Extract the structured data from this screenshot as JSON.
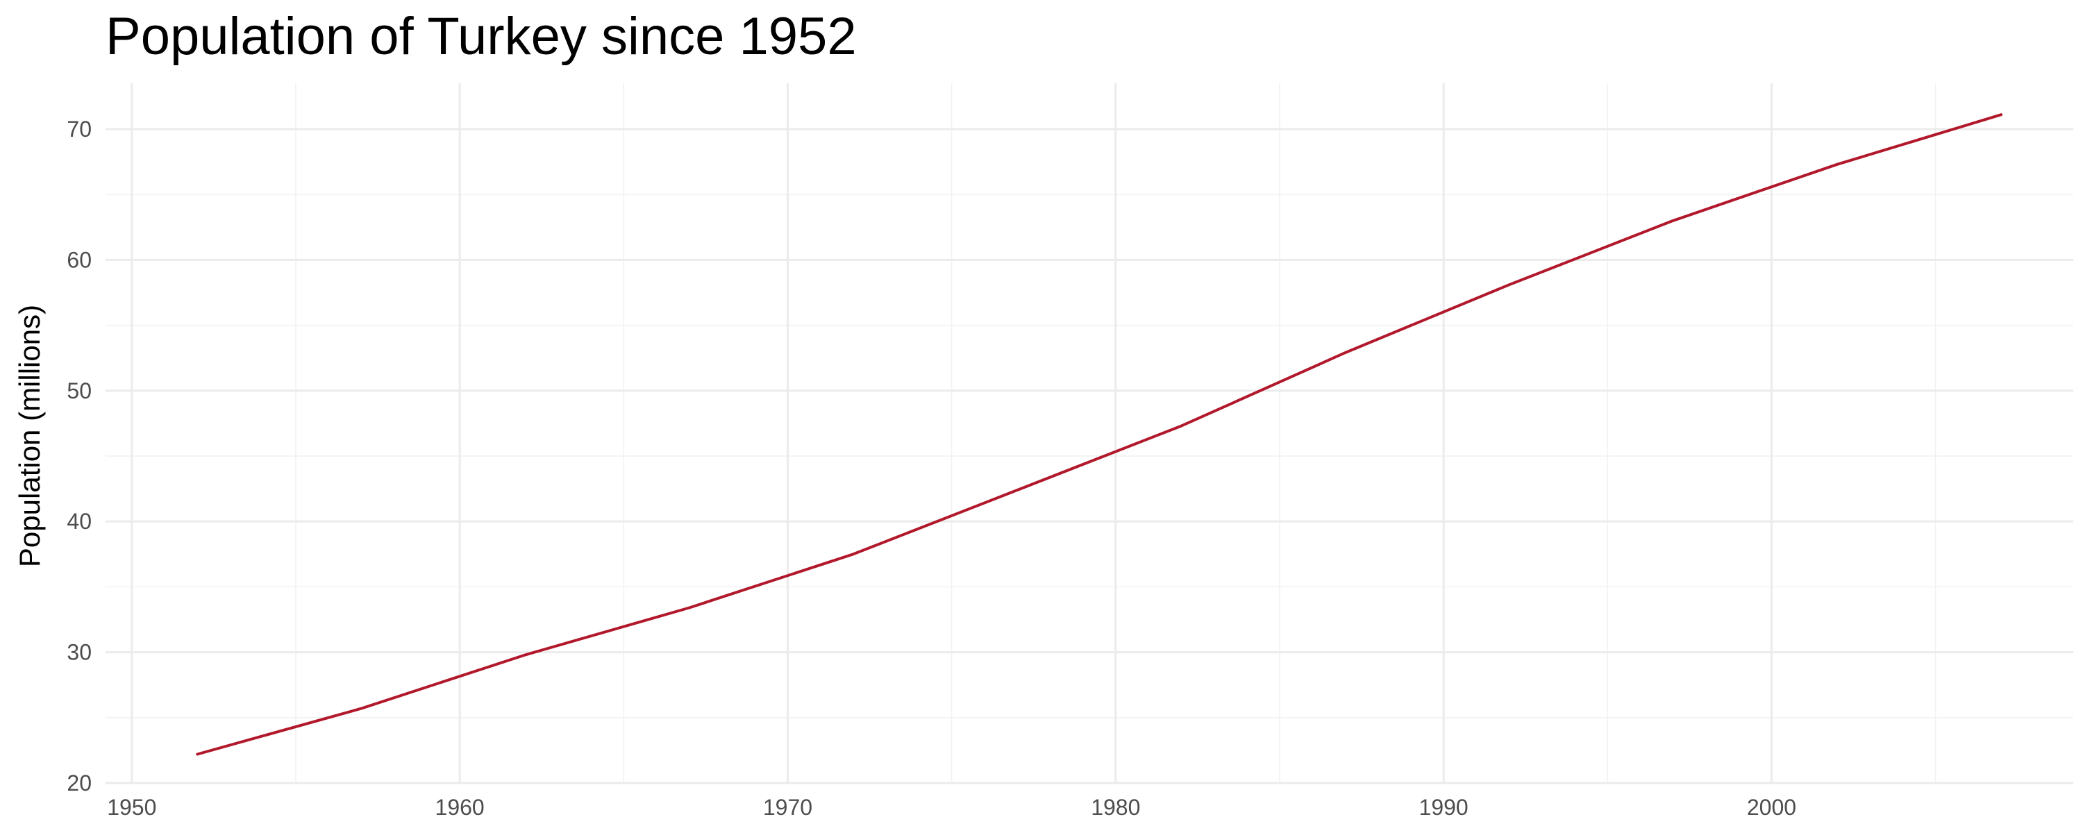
{
  "chart_data": {
    "type": "line",
    "title": "Population of Turkey since 1952",
    "xlabel": "",
    "ylabel": "Population (millions)",
    "xlim": [
      1949.2,
      2009.2
    ],
    "ylim": [
      20,
      73.5
    ],
    "x_ticks": [
      1950,
      1960,
      1970,
      1980,
      1990,
      2000
    ],
    "y_ticks": [
      20,
      30,
      40,
      50,
      60,
      70
    ],
    "grid": true,
    "legend": "none",
    "series": [
      {
        "color": "#b2182b",
        "x": [
          1952,
          1957,
          1962,
          1967,
          1972,
          1977,
          1982,
          1987,
          1992,
          1997,
          2002,
          2007
        ],
        "y": [
          22.2,
          25.7,
          29.8,
          33.4,
          37.5,
          42.4,
          47.3,
          52.9,
          58.1,
          63.0,
          67.3,
          71.1
        ]
      }
    ]
  }
}
